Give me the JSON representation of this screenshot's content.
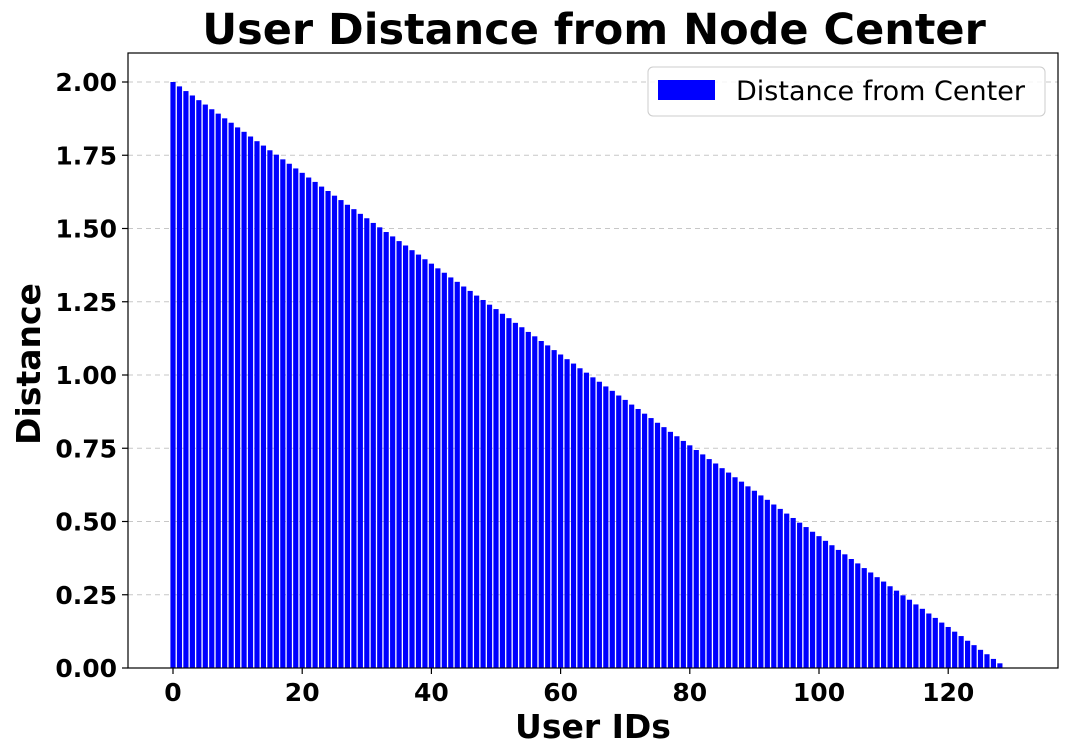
{
  "chart_data": {
    "type": "bar",
    "title": "User Distance from Node Center",
    "xlabel": "User IDs",
    "ylabel": "Distance",
    "xlim": [
      -7,
      136
    ],
    "ylim": [
      0,
      2.1
    ],
    "x_ticks": [
      0,
      20,
      40,
      60,
      80,
      100,
      120
    ],
    "y_ticks": [
      0.0,
      0.25,
      0.5,
      0.75,
      1.0,
      1.25,
      1.5,
      1.75,
      2.0
    ],
    "y_tick_labels": [
      "0.00",
      "0.25",
      "0.50",
      "0.75",
      "1.00",
      "1.25",
      "1.50",
      "1.75",
      "2.00"
    ],
    "grid": "horizontal dashed",
    "legend_position": "top-right",
    "series": [
      {
        "name": "Distance from Center",
        "color": "#0000ff",
        "x": [
          0,
          1,
          2,
          3,
          4,
          5,
          6,
          7,
          8,
          9,
          10,
          11,
          12,
          13,
          14,
          15,
          16,
          17,
          18,
          19,
          20,
          21,
          22,
          23,
          24,
          25,
          26,
          27,
          28,
          29,
          30,
          31,
          32,
          33,
          34,
          35,
          36,
          37,
          38,
          39,
          40,
          41,
          42,
          43,
          44,
          45,
          46,
          47,
          48,
          49,
          50,
          51,
          52,
          53,
          54,
          55,
          56,
          57,
          58,
          59,
          60,
          61,
          62,
          63,
          64,
          65,
          66,
          67,
          68,
          69,
          70,
          71,
          72,
          73,
          74,
          75,
          76,
          77,
          78,
          79,
          80,
          81,
          82,
          83,
          84,
          85,
          86,
          87,
          88,
          89,
          90,
          91,
          92,
          93,
          94,
          95,
          96,
          97,
          98,
          99,
          100,
          101,
          102,
          103,
          104,
          105,
          106,
          107,
          108,
          109,
          110,
          111,
          112,
          113,
          114,
          115,
          116,
          117,
          118,
          119,
          120,
          121,
          122,
          123,
          124,
          125,
          126,
          127,
          128,
          129
        ],
        "values": [
          2.0,
          1.985,
          1.969,
          1.954,
          1.938,
          1.923,
          1.907,
          1.892,
          1.876,
          1.861,
          1.845,
          1.83,
          1.814,
          1.798,
          1.783,
          1.767,
          1.752,
          1.736,
          1.721,
          1.705,
          1.69,
          1.674,
          1.659,
          1.643,
          1.628,
          1.612,
          1.597,
          1.581,
          1.566,
          1.55,
          1.535,
          1.519,
          1.504,
          1.488,
          1.473,
          1.457,
          1.442,
          1.426,
          1.411,
          1.395,
          1.38,
          1.364,
          1.349,
          1.333,
          1.318,
          1.302,
          1.287,
          1.271,
          1.256,
          1.24,
          1.225,
          1.209,
          1.194,
          1.178,
          1.163,
          1.147,
          1.132,
          1.116,
          1.101,
          1.085,
          1.07,
          1.054,
          1.039,
          1.023,
          1.008,
          0.992,
          0.977,
          0.961,
          0.946,
          0.93,
          0.915,
          0.899,
          0.884,
          0.868,
          0.853,
          0.837,
          0.822,
          0.806,
          0.791,
          0.775,
          0.76,
          0.744,
          0.729,
          0.713,
          0.698,
          0.682,
          0.667,
          0.651,
          0.636,
          0.62,
          0.605,
          0.589,
          0.574,
          0.558,
          0.543,
          0.527,
          0.512,
          0.496,
          0.481,
          0.465,
          0.45,
          0.434,
          0.419,
          0.403,
          0.388,
          0.372,
          0.357,
          0.341,
          0.326,
          0.31,
          0.295,
          0.279,
          0.264,
          0.248,
          0.233,
          0.217,
          0.202,
          0.186,
          0.171,
          0.155,
          0.14,
          0.124,
          0.109,
          0.093,
          0.078,
          0.062,
          0.047,
          0.031,
          0.016,
          0.0
        ]
      }
    ]
  }
}
